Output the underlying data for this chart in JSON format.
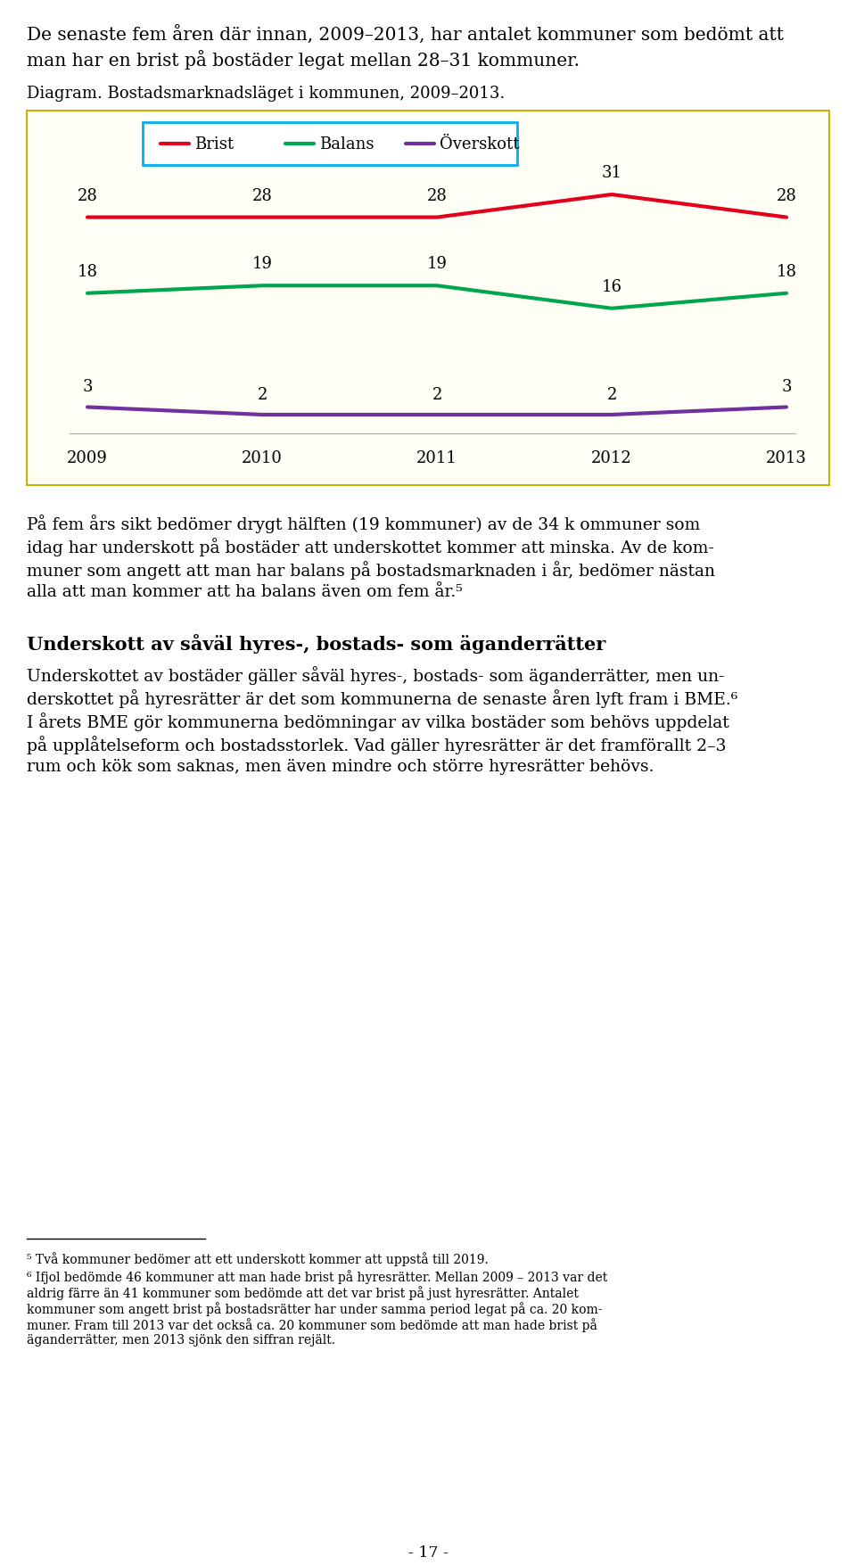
{
  "page_width": 9.6,
  "page_height": 17.56,
  "background_color": "#ffffff",
  "top_text_line1": "De senaste fem åren där innan, 2009–2013, har antalet kommuner som bedömt att",
  "top_text_line2": "man har en brist på bostäder legat mellan 28–31 kommuner.",
  "diagram_label": "Diagram. Bostadsmarknadsläget i kommunen, 2009–2013.",
  "years": [
    2009,
    2010,
    2011,
    2012,
    2013
  ],
  "brist_values": [
    28,
    28,
    28,
    31,
    28
  ],
  "balans_values": [
    18,
    19,
    19,
    16,
    18
  ],
  "overskott_values": [
    3,
    2,
    2,
    2,
    3
  ],
  "brist_color": "#e2001a",
  "balans_color": "#00a550",
  "overskott_color": "#7030a0",
  "legend_labels": [
    "Brist",
    "Balans",
    "Överskott"
  ],
  "chart_bg": "#fefef5",
  "chart_border_color": "#c8b400",
  "legend_border_color": "#00b0f0",
  "body1_lines": [
    "På fem års sikt bedömer drygt hälften (19 kommuner) av de 34 k ommuner som",
    "idag har underskott på bostäder att underskottet kommer att minska. Av de kom-",
    "muner som angett att man har balans på bostadsmarknaden i år, bedömer nästan",
    "alla att man kommer att ha balans även om fem år.⁵"
  ],
  "heading2": "Underskott av såväl hyres-, bostads- som äganderrätter",
  "body2_lines": [
    "Underskottet av bostäder gäller såväl hyres-, bostads- som äganderrätter, men un-",
    "derskottet på hyresrätter är det som kommunerna de senaste åren lyft fram i BME.⁶",
    "I årets BME gör kommunerna bedömningar av vilka bostäder som behövs uppdelat",
    "på upplåtelseform och bostadsstorlek. Vad gäller hyresrätter är det framförallt 2–3",
    "rum och kök som saknas, men även mindre och större hyresrätter behövs."
  ],
  "footnote5": "⁵ Två kommuner bedömer att ett underskott kommer att uppstå till 2019.",
  "footnote6_lines": [
    "⁶ Ifjol bedömde 46 kommuner att man hade brist på hyresrätter. Mellan 2009 – 2013 var det",
    "aldrig färre än 41 kommuner som bedömde att det var brist på just hyresrätter. Antalet",
    "kommuner som angett brist på bostadsrätter har under samma period legat på ca. 20 kom-",
    "muner. Fram till 2013 var det också ca. 20 kommuner som bedömde att man hade brist på",
    "äganderrätter, men 2013 sjönk den siffran rejält."
  ],
  "page_number": "- 17 -"
}
